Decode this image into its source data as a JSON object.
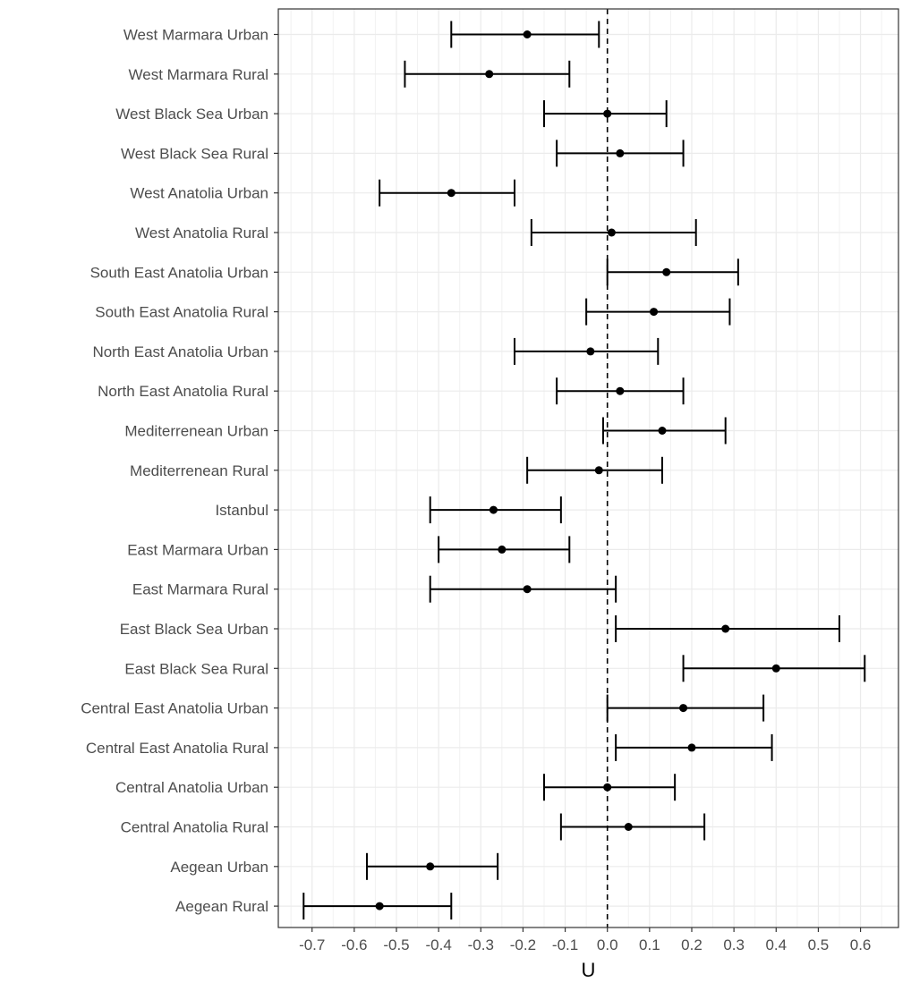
{
  "chart_data": {
    "type": "forest",
    "title": "",
    "xlabel": "U",
    "ylabel": "",
    "xlim": [
      -0.78,
      0.69
    ],
    "grid": true,
    "reference_line": 0,
    "x_ticks": [
      "-0.7",
      "-0.6",
      "-0.5",
      "-0.4",
      "-0.3",
      "-0.2",
      "-0.1",
      "0.0",
      "0.1",
      "0.2",
      "0.3",
      "0.4",
      "0.5",
      "0.6"
    ],
    "points": [
      {
        "label": "West Marmara Urban",
        "estimate": -0.19,
        "lower": -0.37,
        "upper": -0.02
      },
      {
        "label": "West Marmara Rural",
        "estimate": -0.28,
        "lower": -0.48,
        "upper": -0.09
      },
      {
        "label": "West Black Sea Urban",
        "estimate": 0.0,
        "lower": -0.15,
        "upper": 0.14
      },
      {
        "label": "West Black Sea Rural",
        "estimate": 0.03,
        "lower": -0.12,
        "upper": 0.18
      },
      {
        "label": "West Anatolia Urban",
        "estimate": -0.37,
        "lower": -0.54,
        "upper": -0.22
      },
      {
        "label": "West Anatolia Rural",
        "estimate": 0.01,
        "lower": -0.18,
        "upper": 0.21
      },
      {
        "label": "South East Anatolia Urban",
        "estimate": 0.14,
        "lower": 0.0,
        "upper": 0.31
      },
      {
        "label": "South East Anatolia Rural",
        "estimate": 0.11,
        "lower": -0.05,
        "upper": 0.29
      },
      {
        "label": "North East Anatolia Urban",
        "estimate": -0.04,
        "lower": -0.22,
        "upper": 0.12
      },
      {
        "label": "North East Anatolia Rural",
        "estimate": 0.03,
        "lower": -0.12,
        "upper": 0.18
      },
      {
        "label": "Mediterrenean Urban",
        "estimate": 0.13,
        "lower": -0.01,
        "upper": 0.28
      },
      {
        "label": "Mediterrenean Rural",
        "estimate": -0.02,
        "lower": -0.19,
        "upper": 0.13
      },
      {
        "label": "Istanbul",
        "estimate": -0.27,
        "lower": -0.42,
        "upper": -0.11
      },
      {
        "label": "East Marmara Urban",
        "estimate": -0.25,
        "lower": -0.4,
        "upper": -0.09
      },
      {
        "label": "East Marmara Rural",
        "estimate": -0.19,
        "lower": -0.42,
        "upper": 0.02
      },
      {
        "label": "East Black Sea Urban",
        "estimate": 0.28,
        "lower": 0.02,
        "upper": 0.55
      },
      {
        "label": "East Black Sea Rural",
        "estimate": 0.4,
        "lower": 0.18,
        "upper": 0.61
      },
      {
        "label": "Central East Anatolia Urban",
        "estimate": 0.18,
        "lower": 0.0,
        "upper": 0.37
      },
      {
        "label": "Central East Anatolia Rural",
        "estimate": 0.2,
        "lower": 0.02,
        "upper": 0.39
      },
      {
        "label": "Central Anatolia Urban",
        "estimate": 0.0,
        "lower": -0.15,
        "upper": 0.16
      },
      {
        "label": "Central Anatolia Rural",
        "estimate": 0.05,
        "lower": -0.11,
        "upper": 0.23
      },
      {
        "label": "Aegean Urban",
        "estimate": -0.42,
        "lower": -0.57,
        "upper": -0.26
      },
      {
        "label": "Aegean Rural",
        "estimate": -0.54,
        "lower": -0.72,
        "upper": -0.37
      }
    ]
  }
}
